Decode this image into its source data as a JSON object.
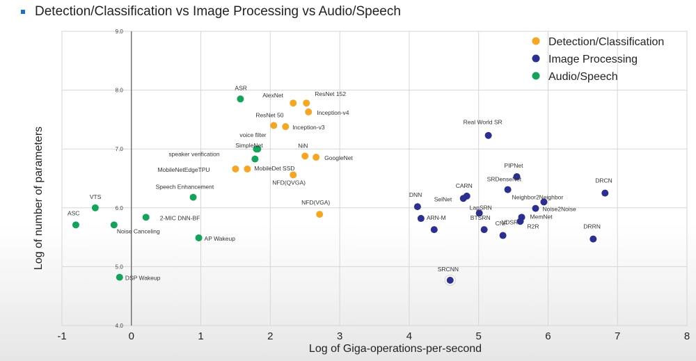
{
  "chart_data": {
    "type": "scatter",
    "title": "Detection/Classification vs Image Processing vs Audio/Speech",
    "xlabel": "Log of Giga-operations-per-second",
    "ylabel": "Log of number of parameters",
    "xlim": [
      -1,
      8
    ],
    "ylim": [
      4.0,
      9.0
    ],
    "x_ticks": [
      "-1",
      "0",
      "1",
      "2",
      "3",
      "4",
      "5",
      "6",
      "7",
      "8"
    ],
    "y_ticks": [
      "4.0",
      "5.0",
      "6.0",
      "7.0",
      "8.0",
      "9.0"
    ],
    "legend_position": "top-right",
    "series": [
      {
        "name": "Detection/Classification",
        "color": "#f5a623",
        "points": [
          {
            "label": "AlexNet",
            "x": 2.33,
            "y": 7.78
          },
          {
            "label": "ResNet 152",
            "x": 2.52,
            "y": 7.78
          },
          {
            "label": "Inception-v4",
            "x": 2.55,
            "y": 7.63
          },
          {
            "label": "ResNet 50",
            "x": 2.05,
            "y": 7.4
          },
          {
            "label": "Inception-v3",
            "x": 2.22,
            "y": 7.38
          },
          {
            "label": "NiN",
            "x": 2.5,
            "y": 6.88
          },
          {
            "label": "GoogleNet",
            "x": 2.66,
            "y": 6.86
          },
          {
            "label": "MobileNetEdgeTPU",
            "x": 1.5,
            "y": 6.66
          },
          {
            "label": "MobileDet SSD",
            "x": 1.67,
            "y": 6.66
          },
          {
            "label": "NFD(QVGA)",
            "x": 2.33,
            "y": 6.56
          },
          {
            "label": "NFD(VGA)",
            "x": 2.71,
            "y": 5.89
          }
        ]
      },
      {
        "name": "Image Processing",
        "color": "#2b2f8f",
        "points": [
          {
            "label": "Real World SR",
            "x": 5.14,
            "y": 7.23
          },
          {
            "label": "PIPNet",
            "x": 5.55,
            "y": 6.53
          },
          {
            "label": "SRDenseNet",
            "x": 5.42,
            "y": 6.31
          },
          {
            "label": "DRCN",
            "x": 6.82,
            "y": 6.25
          },
          {
            "label": "CARN",
            "x": 4.83,
            "y": 6.2
          },
          {
            "label": "SelNet",
            "x": 4.78,
            "y": 6.16
          },
          {
            "label": "Neighbor2Neighbor",
            "x": 5.94,
            "y": 6.1
          },
          {
            "label": "DNN",
            "x": 4.12,
            "y": 6.02
          },
          {
            "label": "LapSRN",
            "x": 5.01,
            "y": 5.91
          },
          {
            "label": "Noise2Noise",
            "x": 5.82,
            "y": 5.99
          },
          {
            "label": "MemNet",
            "x": 5.62,
            "y": 5.84
          },
          {
            "label": "ARN-M",
            "x": 4.17,
            "y": 5.82
          },
          {
            "label": "BTSRN",
            "x": 4.36,
            "y": 5.63
          },
          {
            "label": "CNF",
            "x": 5.08,
            "y": 5.63
          },
          {
            "label": "VDSR",
            "x": 5.35,
            "y": 5.53
          },
          {
            "label": "R2R",
            "x": 5.6,
            "y": 5.77
          },
          {
            "label": "DRRN",
            "x": 6.65,
            "y": 5.47
          },
          {
            "label": "SRCNN",
            "x": 4.59,
            "y": 4.77
          }
        ]
      },
      {
        "name": "Audio/Speech",
        "color": "#14a35a",
        "points": [
          {
            "label": "ASR",
            "x": 1.57,
            "y": 7.85
          },
          {
            "label": "voice filter",
            "x": 1.82,
            "y": 7.0
          },
          {
            "label": "SimpleNet",
            "x": 1.8,
            "y": 7.0
          },
          {
            "label": "speaker verification",
            "x": 1.78,
            "y": 6.83
          },
          {
            "label": "Speech Enhancement",
            "x": 0.89,
            "y": 6.18
          },
          {
            "label": "VTS",
            "x": -0.52,
            "y": 6.0
          },
          {
            "label": "ASC",
            "x": -0.8,
            "y": 5.71
          },
          {
            "label": "2-MIC DNN-BF",
            "x": 0.21,
            "y": 5.84
          },
          {
            "label": "Noise Canceling",
            "x": -0.25,
            "y": 5.71
          },
          {
            "label": "AP Wakeup",
            "x": 0.97,
            "y": 5.49
          },
          {
            "label": "DSP Wakeup",
            "x": -0.17,
            "y": 4.82
          }
        ]
      }
    ]
  }
}
